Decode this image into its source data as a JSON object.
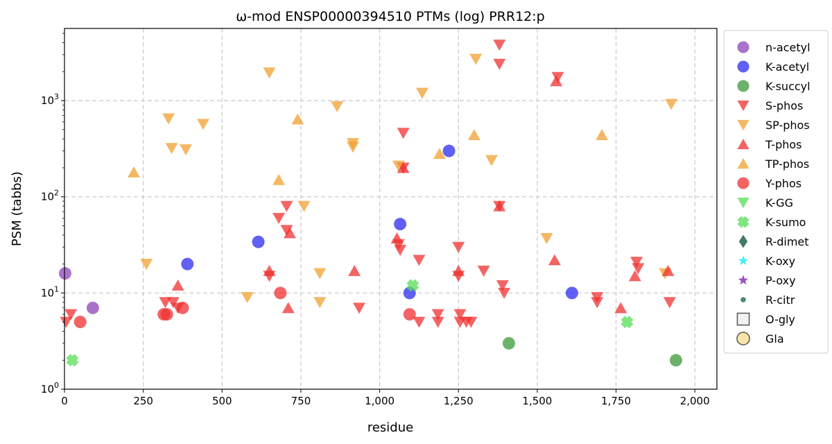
{
  "chart_data": {
    "type": "scatter",
    "title": "ω-mod ENSP00000394510 PTMs (log) PRR12:p",
    "xlabel": "residue",
    "ylabel": "PSM (tabbs)",
    "xlim": [
      0,
      2070
    ],
    "ylim_log10": [
      0,
      3.75
    ],
    "x_scale": "linear",
    "y_scale": "log",
    "grid": true,
    "legend_placement": "outside-right",
    "x_ticks": [
      0,
      250,
      500,
      750,
      1000,
      1250,
      1500,
      1750,
      2000
    ],
    "x_tick_labels": [
      "0",
      "250",
      "500",
      "750",
      "1,000",
      "1,250",
      "1,500",
      "1,750",
      "2,000"
    ],
    "y_ticks": [
      1,
      10,
      100,
      1000
    ],
    "y_tick_labels": [
      {
        "base": "10",
        "exp": "0"
      },
      {
        "base": "10",
        "exp": "1"
      },
      {
        "base": "10",
        "exp": "2"
      },
      {
        "base": "10",
        "exp": "3"
      }
    ],
    "series": [
      {
        "name": "n-acetyl",
        "marker": "circle",
        "color": "#8e44b8",
        "points": [
          [
            2,
            16
          ],
          [
            90,
            7
          ]
        ]
      },
      {
        "name": "K-acetyl",
        "marker": "circle",
        "color": "#2b2bf0",
        "points": [
          [
            615,
            34
          ],
          [
            390,
            20
          ],
          [
            1065,
            52
          ],
          [
            1220,
            300
          ],
          [
            1095,
            10
          ],
          [
            1610,
            10
          ]
        ]
      },
      {
        "name": "K-succyl",
        "marker": "circle",
        "color": "#3a9a3a",
        "points": [
          [
            1410,
            3
          ],
          [
            1940,
            2
          ]
        ]
      },
      {
        "name": "S-phos",
        "marker": "triangle-down",
        "color": "#f03030",
        "points": [
          [
            5,
            5
          ],
          [
            20,
            6
          ],
          [
            320,
            8
          ],
          [
            345,
            8
          ],
          [
            360,
            7
          ],
          [
            650,
            15
          ],
          [
            680,
            60
          ],
          [
            705,
            80
          ],
          [
            705,
            45
          ],
          [
            1060,
            32
          ],
          [
            1065,
            28
          ],
          [
            1075,
            460
          ],
          [
            1075,
            200
          ],
          [
            1125,
            22
          ],
          [
            1125,
            5
          ],
          [
            1185,
            6
          ],
          [
            1185,
            5
          ],
          [
            1250,
            30
          ],
          [
            1250,
            15
          ],
          [
            1255,
            6
          ],
          [
            1255,
            5
          ],
          [
            1275,
            5
          ],
          [
            1290,
            5
          ],
          [
            1330,
            17
          ],
          [
            1380,
            3800
          ],
          [
            1380,
            2400
          ],
          [
            1380,
            80
          ],
          [
            1390,
            12
          ],
          [
            1395,
            10
          ],
          [
            1565,
            1750
          ],
          [
            1690,
            9
          ],
          [
            1690,
            8
          ],
          [
            1815,
            21
          ],
          [
            1820,
            18
          ],
          [
            1920,
            8
          ],
          [
            935,
            7
          ]
        ]
      },
      {
        "name": "SP-phos",
        "marker": "triangle-down",
        "color": "#f0a030",
        "points": [
          [
            330,
            650
          ],
          [
            340,
            320
          ],
          [
            385,
            310
          ],
          [
            440,
            570
          ],
          [
            650,
            1950
          ],
          [
            260,
            20
          ],
          [
            580,
            9
          ],
          [
            760,
            80
          ],
          [
            810,
            16
          ],
          [
            810,
            8
          ],
          [
            865,
            870
          ],
          [
            915,
            360
          ],
          [
            915,
            330
          ],
          [
            1060,
            210
          ],
          [
            1135,
            1200
          ],
          [
            1305,
            2700
          ],
          [
            1355,
            240
          ],
          [
            1530,
            37
          ],
          [
            1905,
            16
          ],
          [
            1925,
            920
          ]
        ]
      },
      {
        "name": "T-phos",
        "marker": "triangle-up",
        "color": "#f03030",
        "points": [
          [
            360,
            12
          ],
          [
            650,
            17
          ],
          [
            710,
            7
          ],
          [
            715,
            42
          ],
          [
            920,
            17
          ],
          [
            1055,
            37
          ],
          [
            1075,
            200
          ],
          [
            1250,
            17
          ],
          [
            1380,
            80
          ],
          [
            1560,
            1600
          ],
          [
            1555,
            22
          ],
          [
            1765,
            7
          ],
          [
            1810,
            15
          ],
          [
            1915,
            17
          ]
        ]
      },
      {
        "name": "TP-phos",
        "marker": "triangle-up",
        "color": "#f0a030",
        "points": [
          [
            220,
            180
          ],
          [
            680,
            150
          ],
          [
            740,
            640
          ],
          [
            1190,
            280
          ],
          [
            1300,
            440
          ],
          [
            1705,
            440
          ]
        ]
      },
      {
        "name": "Y-phos",
        "marker": "circle",
        "color": "#f03030",
        "points": [
          [
            50,
            5
          ],
          [
            315,
            6
          ],
          [
            325,
            6
          ],
          [
            375,
            7
          ],
          [
            685,
            10
          ],
          [
            1095,
            6
          ]
        ]
      },
      {
        "name": "K-GG",
        "marker": "triangle-down",
        "color": "#55dd55",
        "points": []
      },
      {
        "name": "K-sumo",
        "marker": "x",
        "color": "#55dd55",
        "points": [
          [
            25,
            2
          ],
          [
            1105,
            12
          ],
          [
            1785,
            5
          ]
        ]
      },
      {
        "name": "R-dimet",
        "marker": "diamond",
        "color": "#2e6b55",
        "points": []
      },
      {
        "name": "K-oxy",
        "marker": "star",
        "color": "#33f0f0",
        "points": []
      },
      {
        "name": "P-oxy",
        "marker": "star",
        "color": "#8e44b8",
        "points": []
      },
      {
        "name": "R-citr",
        "marker": "dot",
        "color": "#3a7a60",
        "points": []
      },
      {
        "name": "O-gly",
        "marker": "square-open",
        "color": "#555555",
        "points": []
      },
      {
        "name": "Gla",
        "marker": "circle-open",
        "color": "#555555",
        "points": []
      }
    ]
  }
}
